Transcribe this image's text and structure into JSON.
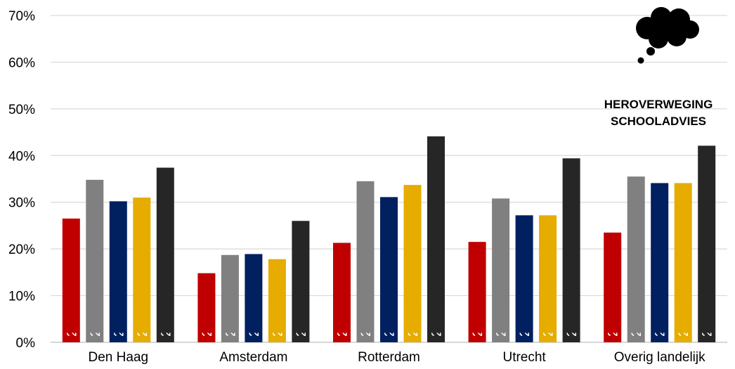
{
  "chart_data": {
    "type": "bar",
    "categories": [
      "Den Haag",
      "Amsterdam",
      "Rotterdam",
      "Utrecht",
      "Overig landelijk"
    ],
    "series": [
      {
        "name": "2014-2015",
        "color": "#c00000",
        "values": [
          26.5,
          14.8,
          21.3,
          21.5,
          23.5
        ]
      },
      {
        "name": "2015-2016",
        "color": "#808080",
        "values": [
          34.8,
          18.7,
          34.5,
          30.8,
          35.5
        ]
      },
      {
        "name": "2016-2017",
        "color": "#002060",
        "values": [
          30.2,
          18.9,
          31.1,
          27.2,
          34.1
        ]
      },
      {
        "name": "2017-2018",
        "color": "#e6ac00",
        "values": [
          31.0,
          17.8,
          33.7,
          27.2,
          34.1
        ]
      },
      {
        "name": "2018-2019",
        "color": "#262626",
        "values": [
          37.4,
          26.0,
          44.1,
          39.4,
          42.1
        ]
      }
    ],
    "ylim": [
      0,
      70
    ],
    "yticks": [
      "0%",
      "10%",
      "20%",
      "30%",
      "40%",
      "50%",
      "60%",
      "70%"
    ],
    "grid": true,
    "annotation": [
      "HEROVERWEGING",
      "SCHOOLADVIES"
    ],
    "annotation_icon": "thought-cloud-icon"
  }
}
